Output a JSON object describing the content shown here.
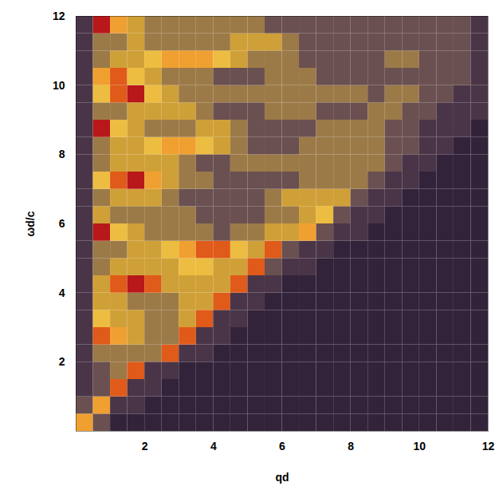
{
  "chart_data": {
    "type": "heatmap",
    "x_label": "qd",
    "y_label": "ωd/c",
    "xlim": [
      0,
      12
    ],
    "ylim": [
      0,
      12
    ],
    "xticks": [
      2,
      4,
      6,
      8,
      10,
      12
    ],
    "yticks": [
      2,
      4,
      6,
      8,
      10,
      12
    ],
    "x": [
      0.25,
      0.75,
      1.25,
      1.75,
      2.25,
      2.75,
      3.25,
      3.75,
      4.25,
      4.75,
      5.25,
      5.75,
      6.25,
      6.75,
      7.25,
      7.75,
      8.25,
      8.75,
      9.25,
      9.75,
      10.25,
      10.75,
      11.25,
      11.75
    ],
    "y": [
      0.25,
      0.75,
      1.25,
      1.75,
      2.25,
      2.75,
      3.25,
      3.75,
      4.25,
      4.75,
      5.25,
      5.75,
      6.25,
      6.75,
      7.25,
      7.75,
      8.25,
      8.75,
      9.25,
      9.75,
      10.25,
      10.75,
      11.25,
      11.75
    ],
    "zlim": [
      0,
      9
    ],
    "values": [
      [
        7,
        3,
        1,
        1,
        1,
        1,
        1,
        1,
        1,
        1,
        1,
        1,
        1,
        1,
        1,
        1,
        1,
        1,
        1,
        1,
        1,
        1,
        1,
        1
      ],
      [
        3,
        7,
        2,
        2,
        1,
        1,
        1,
        1,
        1,
        1,
        1,
        1,
        1,
        1,
        1,
        1,
        1,
        1,
        1,
        1,
        1,
        1,
        1,
        1
      ],
      [
        2,
        3,
        8,
        2,
        2,
        1,
        1,
        1,
        1,
        1,
        1,
        1,
        1,
        1,
        1,
        1,
        1,
        1,
        1,
        1,
        1,
        1,
        1,
        1
      ],
      [
        2,
        3,
        4,
        8,
        2,
        2,
        1,
        1,
        1,
        1,
        1,
        1,
        1,
        1,
        1,
        1,
        1,
        1,
        1,
        1,
        1,
        1,
        1,
        1
      ],
      [
        2,
        4,
        4,
        4,
        4,
        8,
        2,
        2,
        1,
        1,
        1,
        1,
        1,
        1,
        1,
        1,
        1,
        1,
        1,
        1,
        1,
        1,
        1,
        1
      ],
      [
        2,
        8,
        7,
        5,
        4,
        4,
        8,
        2,
        2,
        1,
        1,
        1,
        1,
        1,
        1,
        1,
        1,
        1,
        1,
        1,
        1,
        1,
        1,
        1
      ],
      [
        2,
        6,
        5,
        5,
        4,
        4,
        5,
        8,
        2,
        2,
        1,
        1,
        1,
        1,
        1,
        1,
        1,
        1,
        1,
        1,
        1,
        1,
        1,
        1
      ],
      [
        2,
        5,
        5,
        4,
        4,
        4,
        5,
        5,
        8,
        2,
        2,
        1,
        1,
        1,
        1,
        1,
        1,
        1,
        1,
        1,
        1,
        1,
        1,
        1
      ],
      [
        2,
        5,
        8,
        9,
        8,
        5,
        5,
        5,
        5,
        8,
        2,
        2,
        1,
        1,
        1,
        1,
        1,
        1,
        1,
        1,
        1,
        1,
        1,
        1
      ],
      [
        2,
        4,
        5,
        5,
        5,
        5,
        6,
        6,
        5,
        5,
        8,
        3,
        2,
        2,
        1,
        1,
        1,
        1,
        1,
        1,
        1,
        1,
        1,
        1
      ],
      [
        2,
        4,
        4,
        5,
        5,
        6,
        7,
        8,
        8,
        6,
        5,
        8,
        3,
        2,
        2,
        1,
        1,
        1,
        1,
        1,
        1,
        1,
        1,
        1
      ],
      [
        2,
        9,
        6,
        5,
        4,
        4,
        4,
        4,
        3,
        4,
        4,
        5,
        5,
        7,
        3,
        2,
        2,
        1,
        1,
        1,
        1,
        1,
        1,
        1
      ],
      [
        2,
        5,
        4,
        4,
        4,
        4,
        4,
        3,
        3,
        3,
        3,
        4,
        4,
        5,
        6,
        3,
        2,
        2,
        1,
        1,
        1,
        1,
        1,
        1
      ],
      [
        2,
        4,
        5,
        5,
        5,
        4,
        3,
        3,
        3,
        3,
        3,
        4,
        5,
        5,
        5,
        5,
        3,
        2,
        2,
        1,
        1,
        1,
        1,
        1
      ],
      [
        2,
        6,
        8,
        9,
        7,
        5,
        4,
        4,
        3,
        3,
        3,
        3,
        3,
        4,
        4,
        4,
        4,
        3,
        2,
        2,
        1,
        1,
        1,
        1
      ],
      [
        2,
        4,
        5,
        5,
        5,
        5,
        4,
        3,
        3,
        4,
        4,
        4,
        4,
        4,
        4,
        4,
        4,
        4,
        3,
        2,
        2,
        1,
        1,
        1
      ],
      [
        2,
        4,
        5,
        5,
        6,
        7,
        7,
        6,
        5,
        4,
        3,
        3,
        3,
        4,
        4,
        4,
        4,
        4,
        3,
        3,
        2,
        2,
        1,
        1
      ],
      [
        2,
        9,
        6,
        5,
        4,
        4,
        4,
        5,
        5,
        4,
        3,
        3,
        3,
        3,
        4,
        4,
        4,
        4,
        3,
        3,
        2,
        2,
        2,
        1
      ],
      [
        2,
        4,
        4,
        5,
        5,
        5,
        5,
        4,
        3,
        3,
        3,
        4,
        4,
        4,
        3,
        3,
        3,
        4,
        4,
        3,
        3,
        2,
        2,
        2
      ],
      [
        2,
        6,
        8,
        9,
        6,
        5,
        4,
        4,
        4,
        4,
        4,
        4,
        4,
        4,
        4,
        4,
        4,
        3,
        4,
        4,
        3,
        3,
        2,
        2
      ],
      [
        2,
        7,
        8,
        6,
        5,
        4,
        4,
        4,
        3,
        3,
        3,
        4,
        4,
        4,
        3,
        3,
        3,
        3,
        3,
        3,
        3,
        3,
        3,
        2
      ],
      [
        2,
        4,
        5,
        5,
        6,
        7,
        7,
        7,
        6,
        5,
        4,
        4,
        4,
        3,
        3,
        3,
        3,
        3,
        4,
        4,
        3,
        3,
        3,
        2
      ],
      [
        2,
        4,
        4,
        5,
        4,
        4,
        4,
        4,
        4,
        5,
        5,
        5,
        4,
        3,
        3,
        3,
        3,
        3,
        3,
        3,
        3,
        3,
        3,
        2
      ],
      [
        2,
        9,
        7,
        5,
        4,
        4,
        4,
        4,
        4,
        4,
        4,
        3,
        3,
        3,
        3,
        3,
        3,
        3,
        3,
        3,
        3,
        3,
        3,
        2
      ]
    ]
  }
}
